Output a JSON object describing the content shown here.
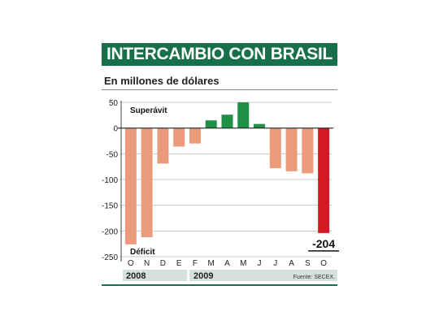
{
  "header": {
    "title": "INTERCAMBIO CON BRASIL",
    "subtitle": "En millones de dólares"
  },
  "labels": {
    "surplus": "Superávit",
    "deficit": "Déficit",
    "last_value": "-204",
    "source": "Fuente: SECEX."
  },
  "years": [
    "2008",
    "2009"
  ],
  "colors": {
    "negative": "#ec9a7c",
    "positive": "#1f9146",
    "highlight": "#d21a24",
    "brand": "#17704a"
  },
  "chart_data": {
    "type": "bar",
    "title": "INTERCAMBIO CON BRASIL",
    "subtitle": "En millones de dólares",
    "categories": [
      "O",
      "N",
      "D",
      "E",
      "F",
      "M",
      "A",
      "M",
      "J",
      "J",
      "A",
      "S",
      "O"
    ],
    "values": [
      -226,
      -212,
      -69,
      -36,
      -30,
      15,
      26,
      50,
      8,
      -78,
      -84,
      -88,
      -204
    ],
    "yticks": [
      50,
      0,
      -50,
      -100,
      -150,
      -200,
      -250
    ],
    "ylim": [
      -250,
      50
    ],
    "grid": true,
    "legend": "none"
  }
}
